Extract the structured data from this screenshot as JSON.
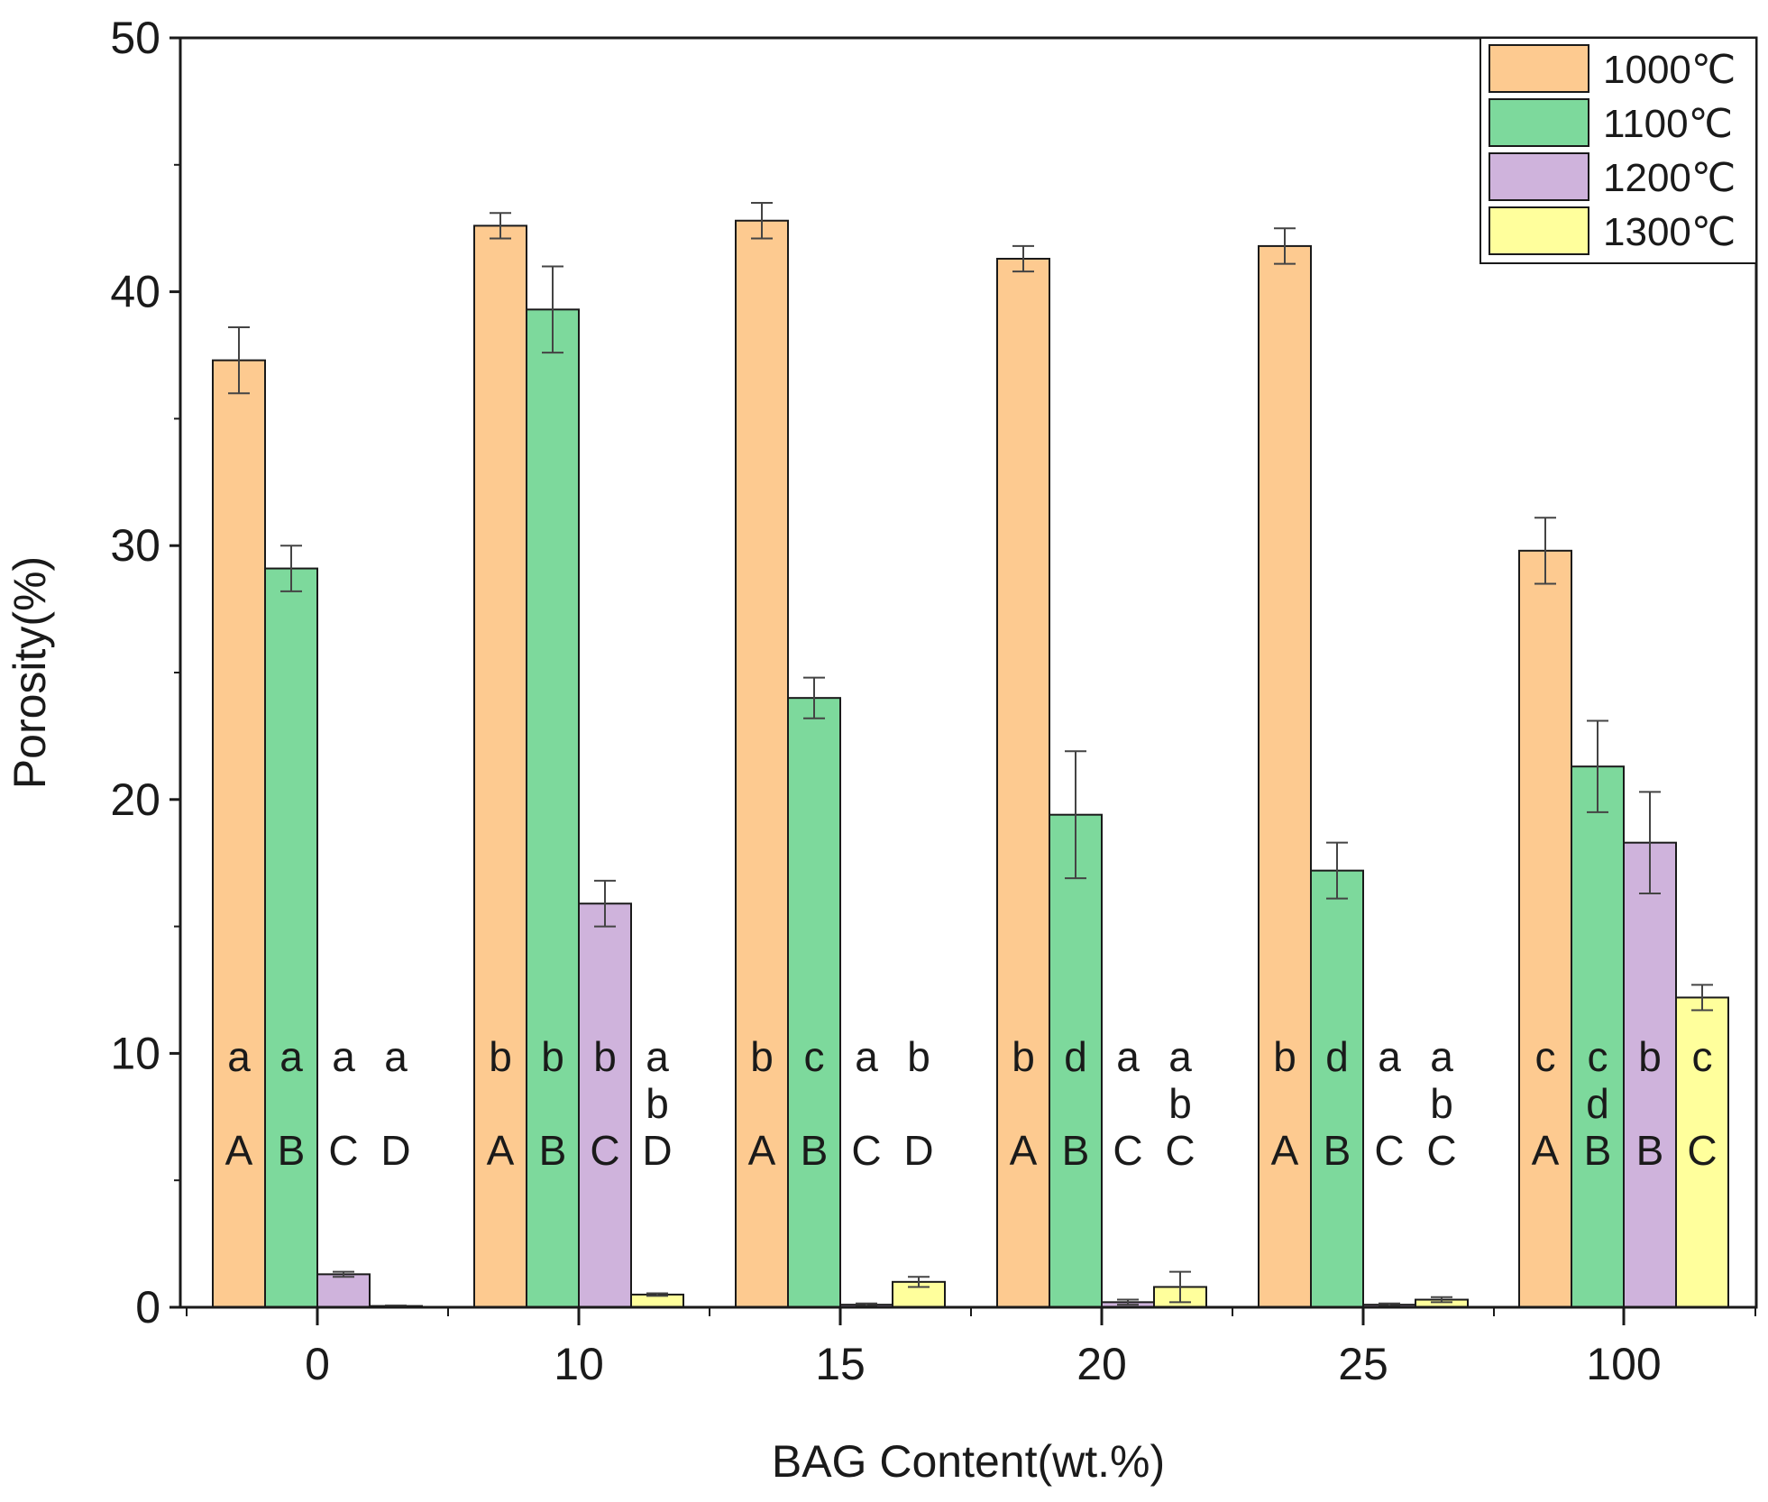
{
  "chart_data": {
    "type": "bar",
    "title": "",
    "xlabel": "BAG Content(wt.%)",
    "ylabel": "Porosity(%)",
    "ylim": [
      0,
      50
    ],
    "yticks": [
      "0",
      "10",
      "20",
      "30",
      "40",
      "50"
    ],
    "categories": [
      "0",
      "10",
      "15",
      "20",
      "25",
      "100"
    ],
    "grid": false,
    "legend_position": "top-right",
    "series": [
      {
        "name": "1000℃",
        "color": "#FDCA90",
        "values": [
          37.3,
          42.6,
          42.8,
          41.3,
          41.8,
          29.8
        ],
        "errors": [
          1.3,
          0.5,
          0.7,
          0.5,
          0.7,
          1.3
        ],
        "sig_lower": [
          "a",
          "b",
          "b",
          "b",
          "b",
          "c"
        ],
        "sig_upper": [
          "A",
          "A",
          "A",
          "A",
          "A",
          "A"
        ]
      },
      {
        "name": "1100℃",
        "color": "#7DD99C",
        "values": [
          29.1,
          39.3,
          24.0,
          19.4,
          17.2,
          21.3
        ],
        "errors": [
          0.9,
          1.7,
          0.8,
          2.5,
          1.1,
          1.8
        ],
        "sig_lower": [
          "a",
          "b",
          "c",
          "d",
          "d",
          "c\nd"
        ],
        "sig_upper": [
          "B",
          "B",
          "B",
          "B",
          "B",
          "B"
        ]
      },
      {
        "name": "1200℃",
        "color": "#CFB3DC",
        "values": [
          1.3,
          15.9,
          0.1,
          0.2,
          0.1,
          18.3
        ],
        "errors": [
          0.1,
          0.9,
          0.05,
          0.1,
          0.05,
          2.0
        ],
        "sig_lower": [
          "a",
          "b",
          "a",
          "a",
          "a",
          "b"
        ],
        "sig_upper": [
          "C",
          "C",
          "C",
          "C",
          "C",
          "B"
        ]
      },
      {
        "name": "1300℃",
        "color": "#FFFF9C",
        "values": [
          0.05,
          0.5,
          1.0,
          0.8,
          0.3,
          12.2
        ],
        "errors": [
          0.02,
          0.05,
          0.2,
          0.6,
          0.1,
          0.5
        ],
        "sig_lower": [
          "a",
          "a\nb",
          "b",
          "a\nb",
          "a\nb",
          "c"
        ],
        "sig_upper": [
          "D",
          "D",
          "D",
          "C",
          "C",
          "C"
        ]
      }
    ]
  }
}
